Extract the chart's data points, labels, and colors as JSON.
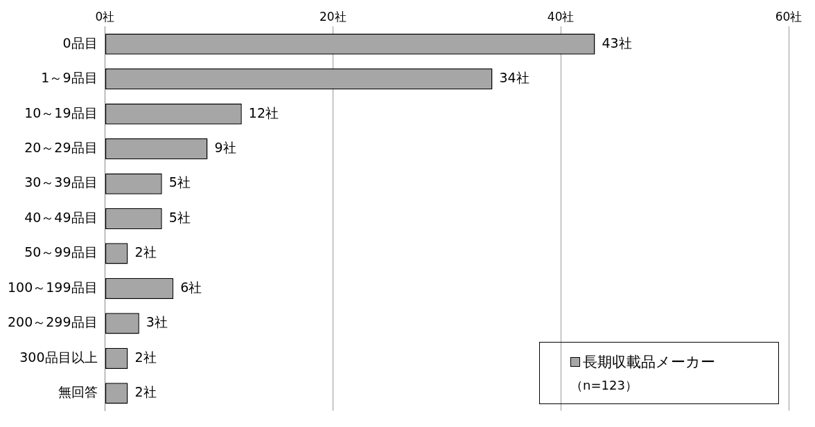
{
  "chart_data": {
    "type": "bar",
    "orientation": "horizontal",
    "categories": [
      "0品目",
      "1～9品目",
      "10～19品目",
      "20～29品目",
      "30～39品目",
      "40～49品目",
      "50～99品目",
      "100～199品目",
      "200～299品目",
      "300品目以上",
      "無回答"
    ],
    "series": [
      {
        "name": "長期収載品メーカー",
        "color": "#a6a6a6",
        "values": [
          43,
          34,
          12,
          9,
          5,
          5,
          2,
          6,
          3,
          2,
          2
        ],
        "value_labels": [
          "43社",
          "34社",
          "12社",
          "9社",
          "5社",
          "5社",
          "2社",
          "6社",
          "3社",
          "2社",
          "2社"
        ]
      }
    ],
    "xlim": [
      0,
      60
    ],
    "xticks": [
      {
        "value": 0,
        "label": "0社"
      },
      {
        "value": 20,
        "label": "20社"
      },
      {
        "value": 40,
        "label": "40社"
      },
      {
        "value": 60,
        "label": "60社"
      }
    ],
    "grid": "x",
    "legend": "bottom right",
    "annotations": [
      "（n=123）"
    ]
  }
}
